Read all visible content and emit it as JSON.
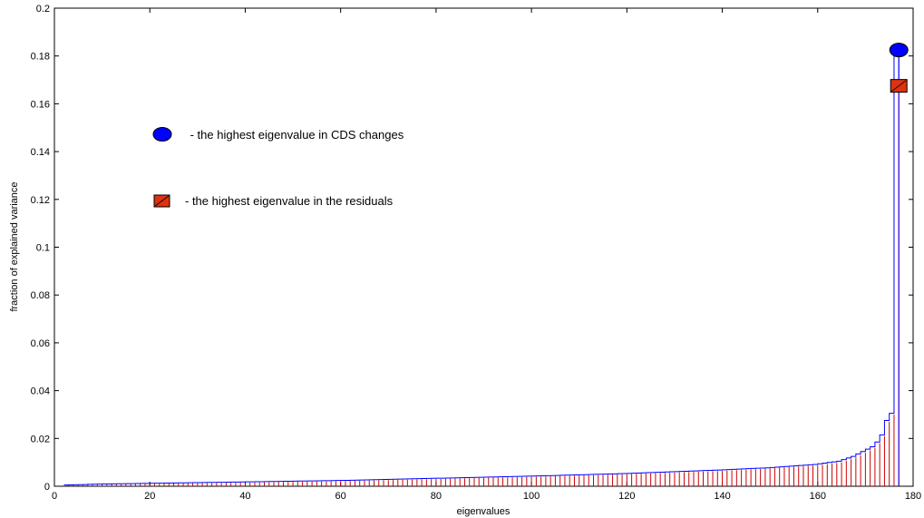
{
  "chart_data": {
    "type": "bar",
    "title": "",
    "xlabel": "eigenvalues",
    "ylabel": "fraction of explained variance",
    "xlim": [
      0,
      180
    ],
    "ylim": [
      0,
      0.2
    ],
    "xticks": [
      0,
      20,
      40,
      60,
      80,
      100,
      120,
      140,
      160,
      180
    ],
    "yticks": [
      0,
      0.02,
      0.04,
      0.06,
      0.08,
      0.1,
      0.12,
      0.14,
      0.16,
      0.18,
      0.2
    ],
    "grid": false,
    "x_start": 3,
    "x_end": 177,
    "series": [
      {
        "name": "the highest eigenvalue in CDS changes",
        "color": "#0000ff",
        "style": "stairs",
        "marker": "ellipse",
        "marker_color": "#0000ff"
      },
      {
        "name": "the highest eigenvalue in the residuals",
        "color": "#cc0000",
        "style": "stems",
        "marker": "square",
        "marker_color": "#dd3311"
      }
    ],
    "anchors_blue": [
      [
        3,
        0.0005
      ],
      [
        10,
        0.0009
      ],
      [
        20,
        0.0012
      ],
      [
        40,
        0.0018
      ],
      [
        60,
        0.0024
      ],
      [
        80,
        0.0033
      ],
      [
        100,
        0.0042
      ],
      [
        120,
        0.0053
      ],
      [
        140,
        0.0068
      ],
      [
        150,
        0.0077
      ],
      [
        160,
        0.0091
      ],
      [
        165,
        0.0105
      ],
      [
        168,
        0.0125
      ],
      [
        170,
        0.0145
      ],
      [
        172,
        0.0165
      ],
      [
        173,
        0.0185
      ],
      [
        174,
        0.0215
      ],
      [
        175,
        0.0275
      ],
      [
        176,
        0.0305
      ],
      [
        177,
        0.1825
      ]
    ],
    "anchors_red": [
      [
        3,
        0.0004
      ],
      [
        10,
        0.0007
      ],
      [
        20,
        0.001
      ],
      [
        40,
        0.0015
      ],
      [
        60,
        0.0021
      ],
      [
        80,
        0.003
      ],
      [
        100,
        0.0039
      ],
      [
        120,
        0.005
      ],
      [
        140,
        0.0064
      ],
      [
        150,
        0.0074
      ],
      [
        160,
        0.0087
      ],
      [
        165,
        0.01
      ],
      [
        168,
        0.012
      ],
      [
        170,
        0.014
      ],
      [
        172,
        0.016
      ],
      [
        173,
        0.018
      ],
      [
        174,
        0.021
      ],
      [
        175,
        0.027
      ],
      [
        176,
        0.03
      ],
      [
        177,
        0.1675
      ]
    ],
    "highlight_points": [
      {
        "series": "the highest eigenvalue in CDS changes",
        "x": 177,
        "y": 0.1825
      },
      {
        "series": "the highest eigenvalue in the residuals",
        "x": 177,
        "y": 0.1675
      }
    ],
    "legend": {
      "placement": "upper-left",
      "entries": [
        {
          "marker": "ellipse",
          "label": " - the highest eigenvalue in CDS changes"
        },
        {
          "marker": "square",
          "label": "- the highest eigenvalue in the residuals"
        }
      ]
    }
  }
}
